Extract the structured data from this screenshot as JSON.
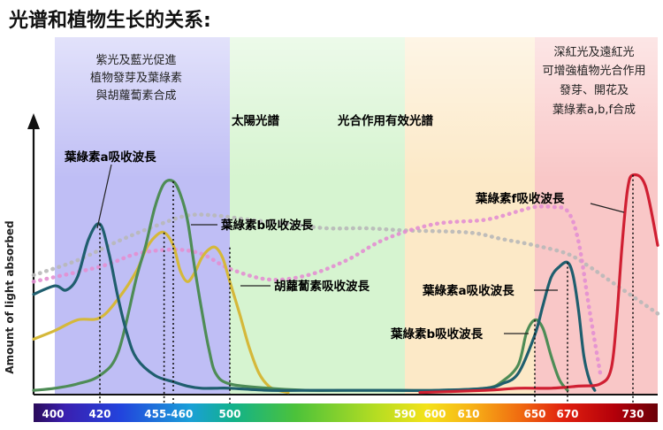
{
  "page": {
    "title": "光谱和植物生长的关系:"
  },
  "chart_data": {
    "type": "line",
    "title": "光谱和植物生长的关系:",
    "xlabel": "",
    "ylabel": "Amount of light absorbed",
    "xlim": [
      395,
      740
    ],
    "ylim": [
      0,
      1
    ],
    "grid": false,
    "x_ticks": [
      400,
      420,
      455,
      460,
      500,
      590,
      600,
      610,
      650,
      670,
      730
    ],
    "tick_labels": [
      {
        "text": "400",
        "x": 400
      },
      {
        "text": "420",
        "x": 420
      },
      {
        "text": "455-460",
        "x": 457.5
      },
      {
        "text": "500",
        "x": 500
      },
      {
        "text": "590",
        "x": 590
      },
      {
        "text": "600",
        "x": 600
      },
      {
        "text": "610",
        "x": 610
      },
      {
        "text": "650",
        "x": 650
      },
      {
        "text": "670",
        "x": 670
      },
      {
        "text": "730",
        "x": 730
      }
    ],
    "markers": [
      420,
      455,
      460,
      500,
      650,
      670,
      730
    ],
    "bands": [
      {
        "name": "violet-blue",
        "from": 400,
        "to": 500,
        "color": "#a9a8f2"
      },
      {
        "name": "green",
        "from": 500,
        "to": 590,
        "color": "#c8f0c0"
      },
      {
        "name": "yellow-orange",
        "from": 590,
        "to": 650,
        "color": "#fbe1b4"
      },
      {
        "name": "red",
        "from": 650,
        "to": 740,
        "color": "#f7b4b4"
      }
    ],
    "series": [
      {
        "name": "葉綠素a吸收波長",
        "color": "#1f5e6e",
        "x": [
          395,
          400,
          405,
          410,
          415,
          420,
          425,
          430,
          435,
          440,
          450,
          460,
          470,
          480,
          490,
          500,
          520,
          540,
          560,
          580,
          600,
          620,
          630,
          640,
          650,
          655,
          660,
          665,
          670,
          675,
          680,
          685,
          690,
          695
        ],
        "y": [
          0.47,
          0.51,
          0.49,
          0.55,
          0.73,
          0.8,
          0.66,
          0.45,
          0.28,
          0.17,
          0.09,
          0.06,
          0.04,
          0.03,
          0.03,
          0.03,
          0.02,
          0.02,
          0.02,
          0.02,
          0.02,
          0.03,
          0.05,
          0.1,
          0.28,
          0.42,
          0.55,
          0.6,
          0.62,
          0.56,
          0.4,
          0.18,
          0.07,
          0.02
        ]
      },
      {
        "name": "葉綠素b吸收波長",
        "color": "#4e8c56",
        "x": [
          395,
          400,
          410,
          420,
          430,
          440,
          445,
          450,
          455,
          460,
          465,
          470,
          475,
          480,
          485,
          490,
          500,
          520,
          540,
          560,
          580,
          600,
          620,
          630,
          640,
          645,
          650,
          655,
          660,
          665,
          670
        ],
        "y": [
          0.02,
          0.03,
          0.05,
          0.09,
          0.2,
          0.55,
          0.7,
          0.88,
          0.99,
          1.0,
          0.94,
          0.82,
          0.6,
          0.4,
          0.22,
          0.1,
          0.05,
          0.03,
          0.02,
          0.02,
          0.02,
          0.02,
          0.03,
          0.06,
          0.14,
          0.29,
          0.35,
          0.31,
          0.18,
          0.07,
          0.02
        ]
      },
      {
        "name": "胡蘿蔔素吸收波長",
        "color": "#d5b83a",
        "x": [
          395,
          400,
          410,
          420,
          430,
          440,
          445,
          450,
          455,
          460,
          465,
          470,
          475,
          480,
          485,
          490,
          495,
          500,
          505,
          510,
          515,
          520,
          525,
          530
        ],
        "y": [
          0.26,
          0.3,
          0.35,
          0.36,
          0.45,
          0.58,
          0.68,
          0.74,
          0.76,
          0.7,
          0.58,
          0.53,
          0.57,
          0.64,
          0.68,
          0.69,
          0.64,
          0.53,
          0.38,
          0.22,
          0.1,
          0.04,
          0.02,
          0.01
        ]
      },
      {
        "name": "葉綠素f吸收波長",
        "color": "#d01f32",
        "x": [
          595,
          620,
          640,
          660,
          680,
          700,
          710,
          715,
          720,
          725,
          730,
          735,
          740
        ],
        "y": [
          0.01,
          0.02,
          0.03,
          0.03,
          0.04,
          0.05,
          0.12,
          0.35,
          0.7,
          0.96,
          1.03,
          0.98,
          0.7
        ]
      },
      {
        "name": "太陽光譜",
        "color": "#b8b8b8",
        "dashed": true,
        "x": [
          395,
          410,
          430,
          450,
          470,
          490,
          510,
          530,
          550,
          570,
          590,
          610,
          630,
          650,
          670,
          690,
          710,
          740
        ],
        "y": [
          0.56,
          0.63,
          0.72,
          0.79,
          0.84,
          0.84,
          0.82,
          0.8,
          0.78,
          0.78,
          0.77,
          0.76,
          0.73,
          0.7,
          0.66,
          0.6,
          0.53,
          0.38
        ]
      },
      {
        "name": "光合作用有效光譜",
        "color": "#e38fd2",
        "dashed": true,
        "x": [
          395,
          420,
          440,
          460,
          480,
          500,
          520,
          540,
          560,
          580,
          600,
          620,
          640,
          650,
          660,
          670,
          680,
          690,
          700
        ],
        "y": [
          0.53,
          0.6,
          0.66,
          0.68,
          0.66,
          0.59,
          0.54,
          0.56,
          0.63,
          0.73,
          0.8,
          0.82,
          0.86,
          0.88,
          0.88,
          0.86,
          0.72,
          0.4,
          0.1
        ]
      }
    ],
    "annotations": [
      {
        "id": "a",
        "text": "葉綠素a吸收波長",
        "color": "#7b4fb0"
      },
      {
        "id": "b",
        "text": "葉綠素b吸收波長",
        "color": "#1b4f9a"
      },
      {
        "id": "car",
        "text": "胡蘿蔔素吸收波長",
        "color": "#7a8f1e"
      },
      {
        "id": "a2",
        "text": "葉綠素a吸收波長",
        "color": "#e05a1a"
      },
      {
        "id": "b2",
        "text": "葉綠素b吸收波長",
        "color": "#e05a1a"
      },
      {
        "id": "f",
        "text": "葉綠素f吸收波長",
        "color": "#d01f32"
      },
      {
        "id": "sun",
        "text": "太陽光譜",
        "color": "#b0b0b0"
      },
      {
        "id": "par",
        "text": "光合作用有效光譜",
        "color": "#e38fd2"
      }
    ],
    "notes": {
      "blue": [
        "紫光及藍光促進",
        "植物發芽及葉綠素",
        "與胡蘿蔔素合成"
      ],
      "red": [
        "深紅光及遠紅光",
        "可增強植物光合作用",
        "發芽、開花及",
        "葉綠素a,b,f合成"
      ]
    }
  }
}
